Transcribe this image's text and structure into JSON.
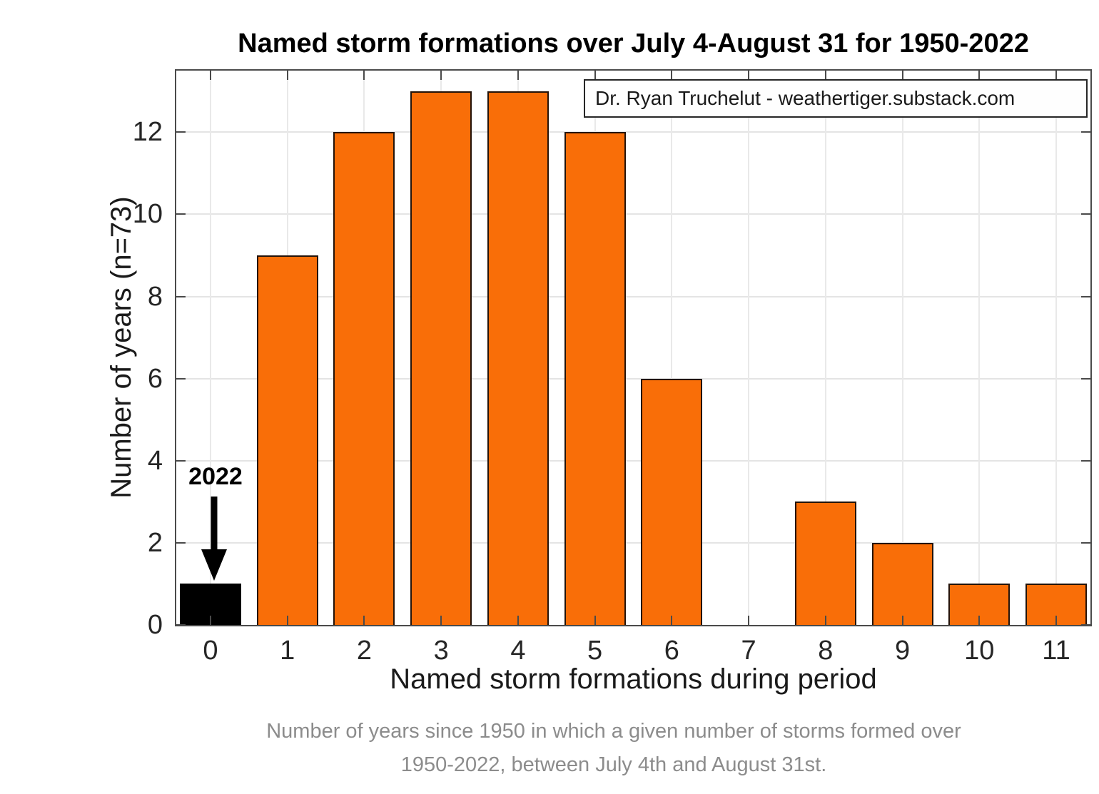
{
  "header": {
    "title": "Named storm formations over July 4-August 31 for 1950-2022"
  },
  "annotation_box": {
    "text": "Dr. Ryan Truchelut - weathertiger.substack.com"
  },
  "highlight": {
    "label": "2022",
    "category": "0"
  },
  "caption": {
    "line1": "Number of years since 1950 in which a given number of storms formed over",
    "line2": "1950-2022, between July 4th and August 31st."
  },
  "chart_data": {
    "type": "bar",
    "title": "Named storm formations over July 4-August 31 for 1950-2022",
    "xlabel": "Named storm formations during period",
    "ylabel": "Number of years (n=73)",
    "categories": [
      "0",
      "1",
      "2",
      "3",
      "4",
      "5",
      "6",
      "7",
      "8",
      "9",
      "10",
      "11"
    ],
    "values": [
      1,
      9,
      12,
      13,
      13,
      12,
      6,
      0,
      3,
      2,
      1,
      1
    ],
    "yticks": [
      0,
      2,
      4,
      6,
      8,
      10,
      12
    ],
    "ylim": [
      0,
      13.5
    ],
    "grid": true,
    "legend_position": "none",
    "bar_color": "#f96e08",
    "bar_edge_color": "#241309",
    "highlight_index": 0,
    "highlight_color": "#000000",
    "annotation_text": "2022",
    "source_label": "Dr. Ryan Truchelut - weathertiger.substack.com"
  },
  "colors": {
    "grid": "#e4e4e4",
    "axis_box": "#4a4a4a",
    "tick_text": "#262626",
    "caption_text": "#8c8c8c",
    "accent_orange": "#f96e08",
    "highlight_black": "#000000"
  }
}
